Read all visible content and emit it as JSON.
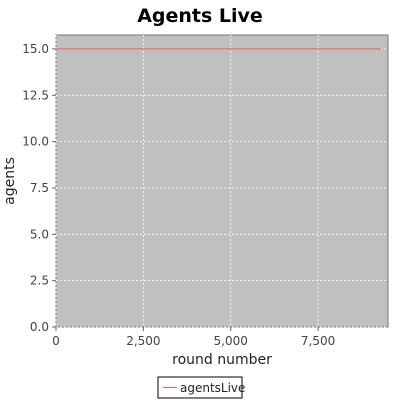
{
  "chart_data": {
    "type": "line",
    "title": "Agents Live",
    "xlabel": "round number",
    "ylabel": "agents",
    "xlim": [
      0,
      9500
    ],
    "ylim": [
      0,
      15.75
    ],
    "x_ticks": [
      0,
      2500,
      5000,
      7500
    ],
    "x_tick_labels": [
      "0",
      "2,500",
      "5,000",
      "7,500"
    ],
    "y_ticks": [
      0,
      2.5,
      5,
      7.5,
      10,
      12.5,
      15
    ],
    "y_tick_labels": [
      "0.0",
      "2.5",
      "5.0",
      "7.5",
      "10.0",
      "12.5",
      "15.0"
    ],
    "grid": true,
    "legend_position": "bottom",
    "plot_background": "#c0c0c0",
    "grid_color": "#ffffff",
    "series": [
      {
        "name": "agentsLive",
        "color": "#ff5555",
        "x": [
          0,
          9300
        ],
        "y": [
          15,
          15
        ]
      }
    ]
  }
}
